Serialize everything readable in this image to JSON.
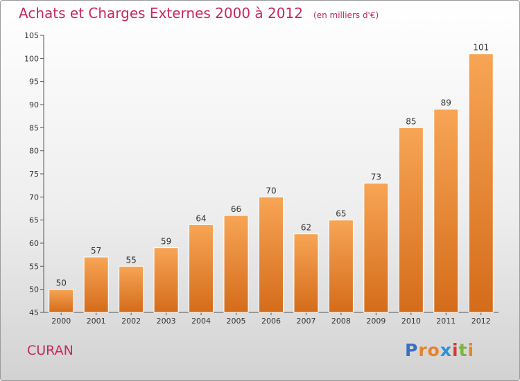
{
  "chart_data": {
    "type": "bar",
    "title": "Achats et Charges Externes 2000 à 2012",
    "unit_note": "(en milliers d'€)",
    "categories": [
      "2000",
      "2001",
      "2002",
      "2003",
      "2004",
      "2005",
      "2006",
      "2007",
      "2008",
      "2009",
      "2010",
      "2011",
      "2012"
    ],
    "values": [
      50,
      57,
      55,
      59,
      64,
      66,
      70,
      62,
      65,
      73,
      85,
      89,
      101
    ],
    "ylim": [
      45,
      105
    ],
    "yticks": [
      "45",
      "50",
      "55",
      "60",
      "65",
      "70",
      "75",
      "80",
      "85",
      "90",
      "95",
      "100",
      "105"
    ],
    "ytick_values": [
      45,
      50,
      55,
      60,
      65,
      70,
      75,
      80,
      85,
      90,
      95,
      100,
      105
    ],
    "grid": false,
    "bar_color_top": "#f7a555",
    "bar_color_bottom": "#d46c1a"
  },
  "commune": "CURAN",
  "logo": {
    "letters": [
      "P",
      "r",
      "o",
      "x",
      "i",
      "t",
      "i"
    ],
    "colors": [
      "#3a6fc4",
      "#e8832a",
      "#e8832a",
      "#2f8fd6",
      "#d93a2b",
      "#7cb342",
      "#e8832a"
    ]
  }
}
